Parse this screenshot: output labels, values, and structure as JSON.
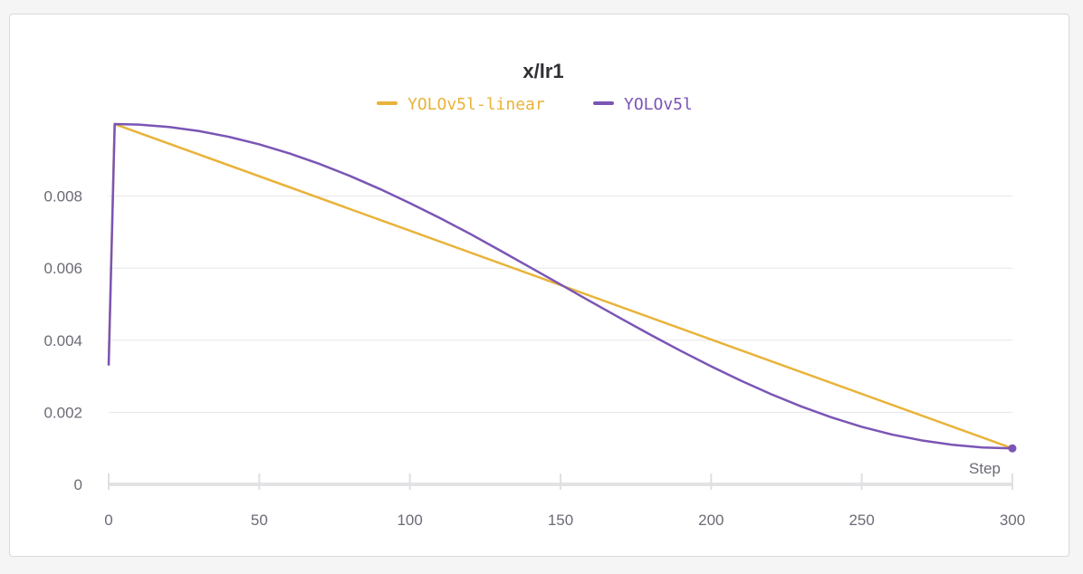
{
  "chart_data": {
    "type": "line",
    "title": "x/lr1",
    "xlabel": "Step",
    "ylabel": "",
    "xlim": [
      0,
      300
    ],
    "ylim": [
      0,
      0.01
    ],
    "xticks": [
      "0",
      "50",
      "100",
      "150",
      "200",
      "250",
      "300"
    ],
    "yticks": [
      "0",
      "0.002",
      "0.004",
      "0.006",
      "0.008"
    ],
    "grid": "horizontal",
    "legend": "top-center",
    "series": [
      {
        "name": "YOLOv5l-linear",
        "color": "#e8b33a",
        "x": [
          0,
          2,
          300
        ],
        "y": [
          0.0033,
          0.01,
          0.001
        ]
      },
      {
        "name": "YOLOv5l",
        "color": "#7b55b5",
        "x": [
          0,
          2,
          10,
          20,
          30,
          40,
          50,
          60,
          70,
          80,
          90,
          100,
          110,
          120,
          130,
          140,
          150,
          160,
          170,
          180,
          190,
          200,
          210,
          220,
          230,
          240,
          250,
          260,
          270,
          280,
          290,
          300
        ],
        "y": [
          0.0033,
          0.01,
          0.009984,
          0.009919,
          0.009805,
          0.009644,
          0.009436,
          0.009185,
          0.008892,
          0.008563,
          0.008199,
          0.007806,
          0.007389,
          0.006952,
          0.006488,
          0.00602,
          0.005548,
          0.005074,
          0.004605,
          0.004145,
          0.003701,
          0.003277,
          0.002874,
          0.0025,
          0.00216,
          0.001858,
          0.001598,
          0.001383,
          0.001218,
          0.001098,
          0.001025,
          0.001
        ]
      }
    ]
  }
}
